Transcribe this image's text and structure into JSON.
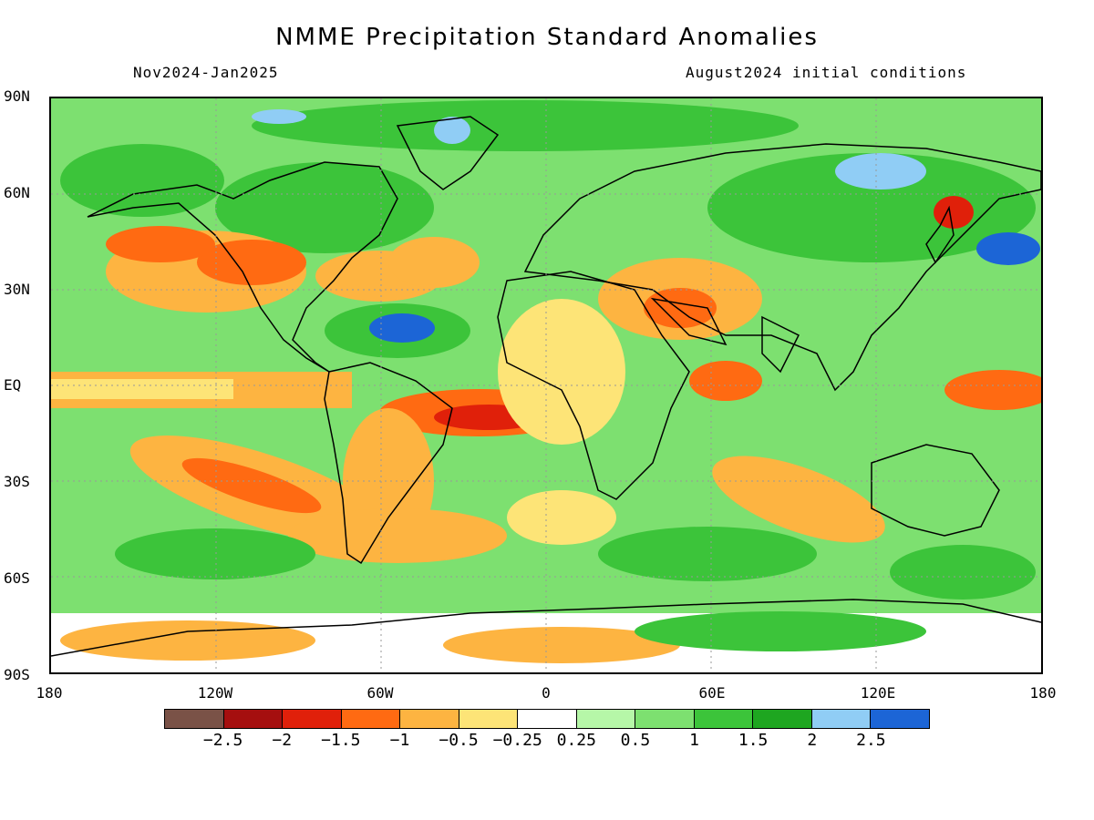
{
  "header": {
    "title": "NMME Precipitation Standard Anomalies",
    "period": "Nov2024-Jan2025",
    "init": "August2024 initial conditions"
  },
  "axes": {
    "lat_labels": [
      "90N",
      "60N",
      "30N",
      "EQ",
      "30S",
      "60S",
      "90S"
    ],
    "lon_labels": [
      "180",
      "120W",
      "60W",
      "0",
      "60E",
      "120E",
      "180"
    ]
  },
  "colorbar": {
    "colors": [
      "#7a5247",
      "#a50f0f",
      "#e0200a",
      "#ff6a12",
      "#fdb441",
      "#fde477",
      "#ffffff",
      "#b6f7a8",
      "#7de070",
      "#3cc43a",
      "#1ea620",
      "#90cdf5",
      "#1c65d6"
    ],
    "labels": [
      "-2.5",
      "-2",
      "-1.5",
      "-1",
      "-0.5",
      "-0.25",
      "0.25",
      "0.5",
      "1",
      "1.5",
      "2",
      "2.5"
    ]
  },
  "chart_data": {
    "type": "heatmap",
    "title": "NMME Precipitation Standard Anomalies",
    "xlabel": "",
    "ylabel": "",
    "xlim": [
      -180,
      180
    ],
    "ylim": [
      -90,
      90
    ],
    "levels": [
      -2.5,
      -2,
      -1.5,
      -1,
      -0.5,
      -0.25,
      0.25,
      0.5,
      1,
      1.5,
      2,
      2.5
    ],
    "grid": true
  }
}
